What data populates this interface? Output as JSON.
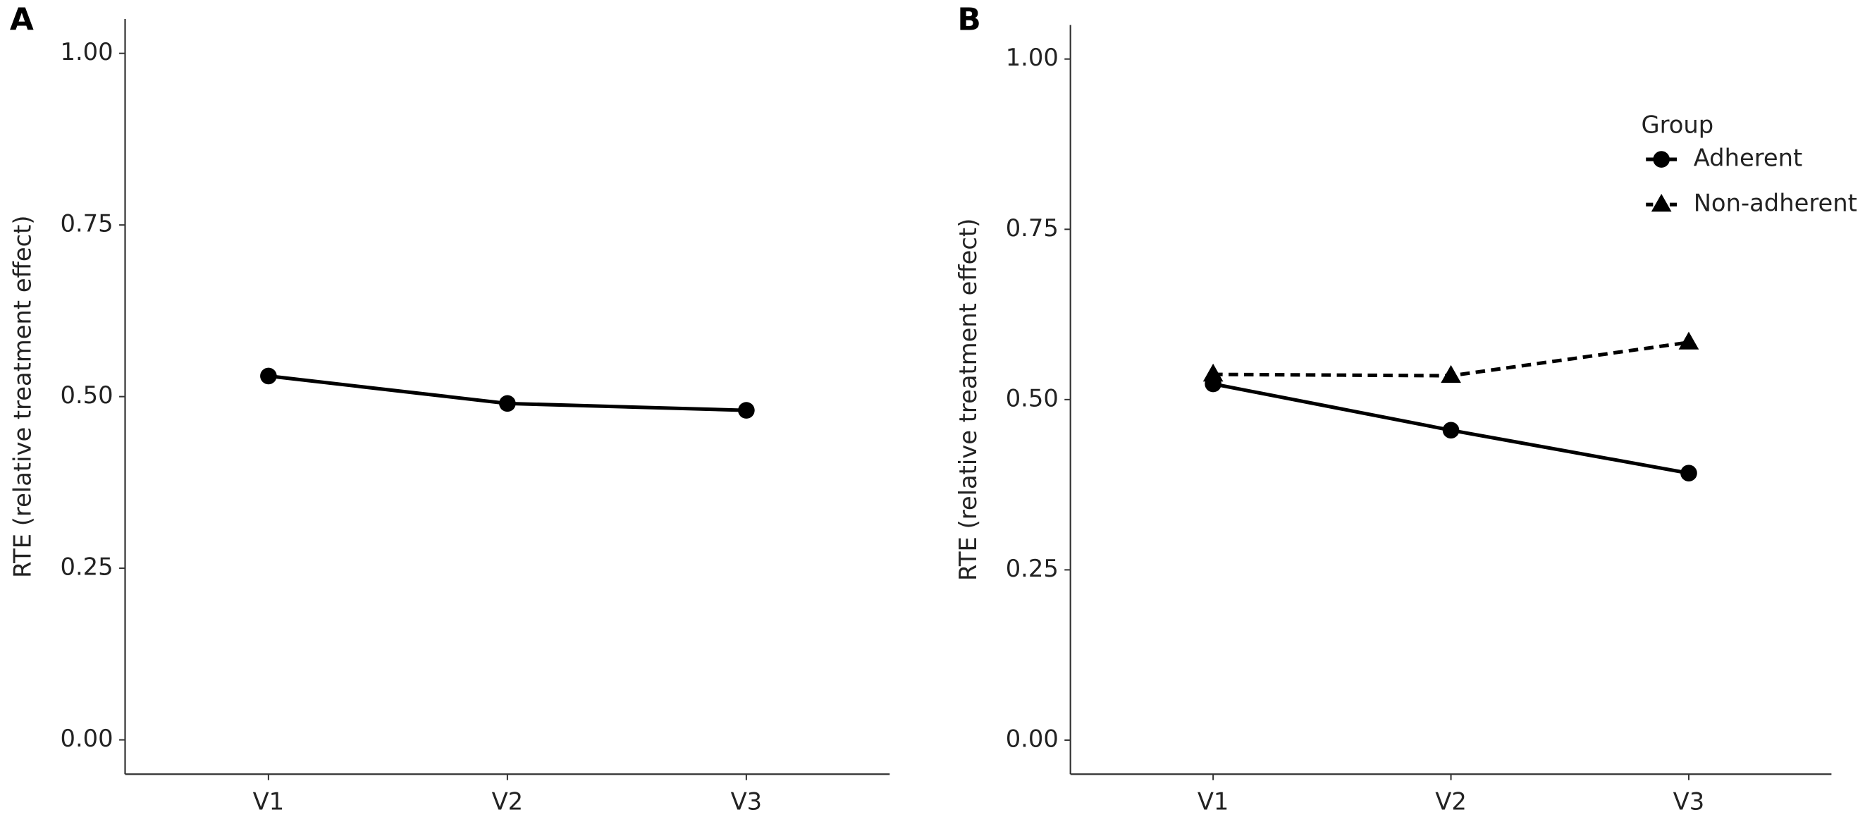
{
  "chart_data": [
    {
      "type": "line",
      "label": "A",
      "ylabel": "RTE (relative treatment effect)",
      "categories": [
        "V1",
        "V2",
        "V3"
      ],
      "values": [
        0.53,
        0.49,
        0.48
      ],
      "color": "#000000",
      "ylim": [
        -0.05,
        1.05
      ],
      "yticks": [
        {
          "value": 0,
          "label": "0.00"
        },
        {
          "value": 0.25,
          "label": "0.25"
        },
        {
          "value": 0.5,
          "label": "0.50"
        },
        {
          "value": 0.75,
          "label": "0.75"
        },
        {
          "value": 1,
          "label": "1.00"
        }
      ]
    },
    {
      "type": "line",
      "label": "B",
      "ylabel": "RTE (relative treatment effect)",
      "categories": [
        "V1",
        "V2",
        "V3"
      ],
      "legend_title": "Group",
      "series": [
        {
          "name": "Adherent",
          "color": "#000000",
          "dash": "solid",
          "marker": "circle",
          "values": [
            0.523,
            0.455,
            0.392
          ]
        },
        {
          "name": "Non-adherent",
          "color": "#000000",
          "dash": "dashed",
          "marker": "triangle",
          "values": [
            0.537,
            0.535,
            0.584
          ]
        }
      ],
      "ylim": [
        -0.05,
        1.05
      ],
      "yticks": [
        {
          "value": 0,
          "label": "0.00"
        },
        {
          "value": 0.25,
          "label": "0.25"
        },
        {
          "value": 0.5,
          "label": "0.50"
        },
        {
          "value": 0.75,
          "label": "0.75"
        },
        {
          "value": 1,
          "label": "1.00"
        }
      ]
    }
  ]
}
